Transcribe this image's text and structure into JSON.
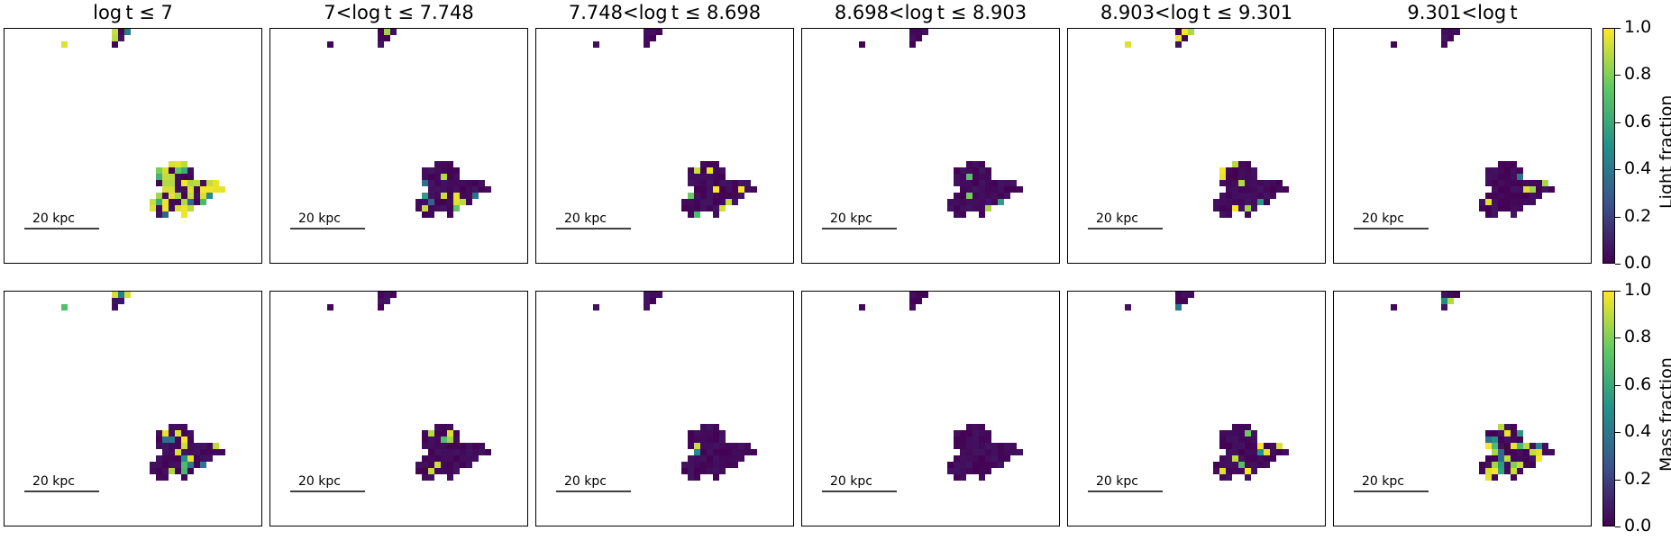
{
  "chart_data": {
    "type": "heatmap",
    "columns": [
      "log t ≤ 7",
      "7<log t ≤ 7.748",
      "7.748<log t ≤ 8.698",
      "8.698<log t ≤ 8.903",
      "8.903<log t ≤ 9.301",
      "9.301<log t"
    ],
    "rows": [
      {
        "colorbar_label": "Light fraction",
        "colorbar_ticks": [
          "0.0",
          "0.2",
          "0.4",
          "0.6",
          "0.8",
          "1.0"
        ],
        "clim": [
          0,
          1
        ],
        "colormap": "viridis",
        "mean_fraction_per_column": [
          0.55,
          0.12,
          0.15,
          0.06,
          0.14,
          0.1
        ]
      },
      {
        "colorbar_label": "Mass fraction",
        "colorbar_ticks": [
          "0.0",
          "0.2",
          "0.4",
          "0.6",
          "0.8",
          "1.0"
        ],
        "clim": [
          0,
          1
        ],
        "colormap": "viridis",
        "mean_fraction_per_column": [
          0.25,
          0.06,
          0.13,
          0.07,
          0.16,
          0.5
        ]
      }
    ],
    "scale_bar_label": "20 kpc",
    "colors": {
      "viridis_0": "#440154",
      "viridis_0_25": "#3b528b",
      "viridis_0_5": "#21918c",
      "viridis_0_75": "#5ec962",
      "viridis_1": "#fde725"
    }
  }
}
